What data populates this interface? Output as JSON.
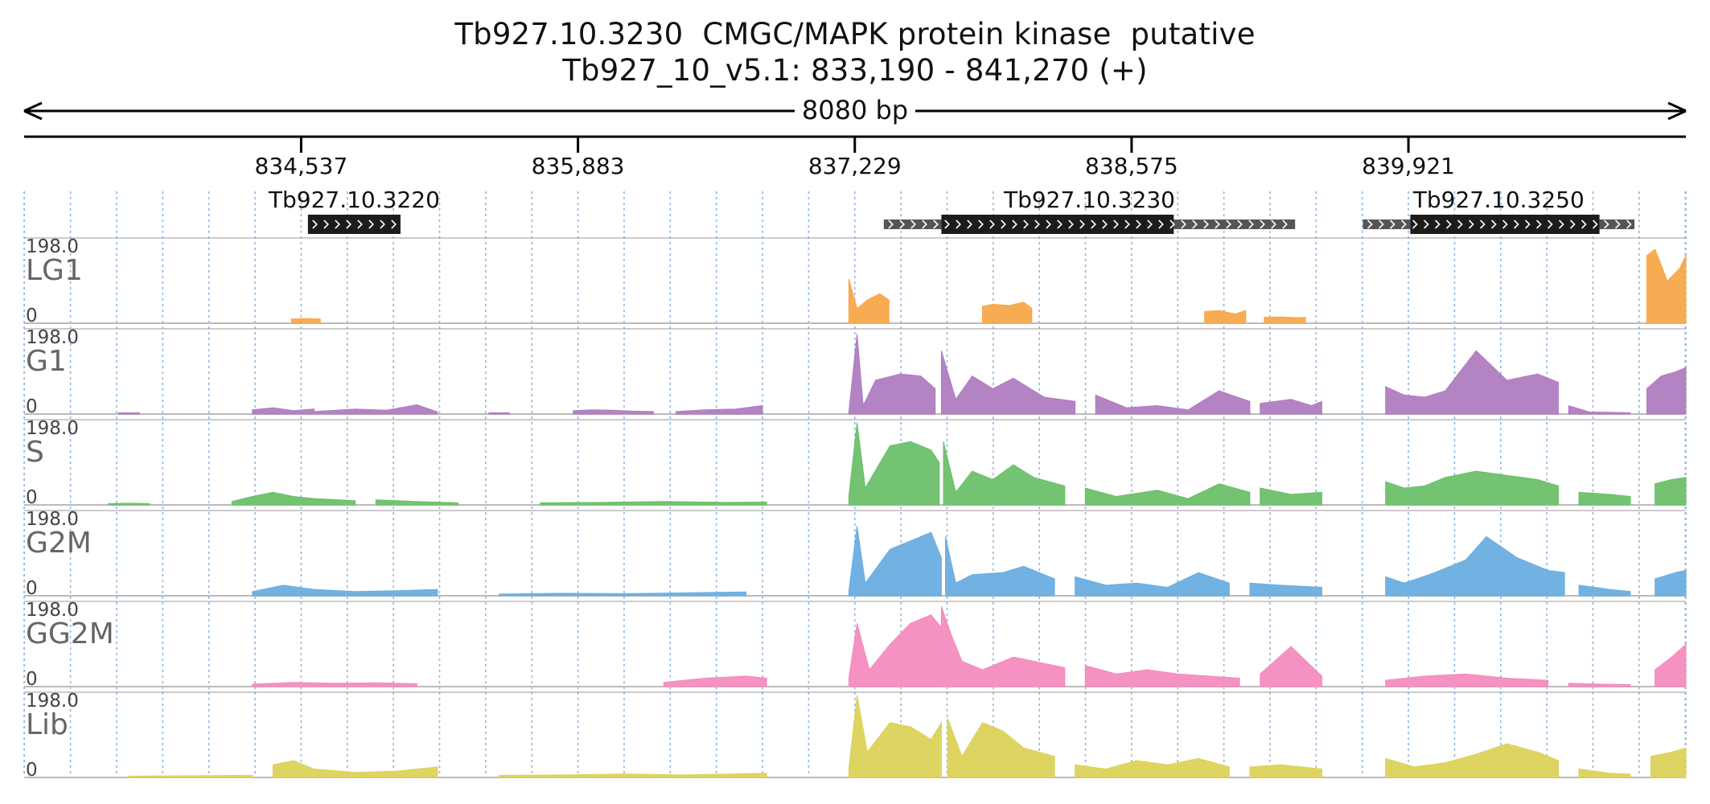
{
  "title": {
    "line1": "Tb927.10.3230  CMGC/MAPK protein kinase  putative",
    "line2": "Tb927_10_v5.1: 833,190 - 841,270 (+)"
  },
  "region": {
    "start": 833190,
    "end": 841270,
    "length_label": "8080 bp"
  },
  "ruler": {
    "ticks": [
      {
        "pos": 834537,
        "label": "834,537"
      },
      {
        "pos": 835883,
        "label": "835,883"
      },
      {
        "pos": 837229,
        "label": "837,229"
      },
      {
        "pos": 838575,
        "label": "838,575"
      },
      {
        "pos": 839921,
        "label": "839,921"
      }
    ]
  },
  "genes": [
    {
      "id": "Tb927.10.3220",
      "start": 834570,
      "end": 835020,
      "cds_start": 834570,
      "cds_end": 835020
    },
    {
      "id": "Tb927.10.3230",
      "start": 837370,
      "end": 839370,
      "cds_start": 837650,
      "cds_end": 838780
    },
    {
      "id": "Tb927.10.3250",
      "start": 839700,
      "end": 841020,
      "cds_start": 839930,
      "cds_end": 840850
    }
  ],
  "colors": {
    "LG1": "#f7a84a",
    "G1": "#b07cc0",
    "S": "#6cc06a",
    "G2M": "#6aaee0",
    "GG2M": "#f48cbf",
    "Lib": "#dcd25a",
    "gene_cds": "#1c1c1c",
    "gene_utr": "#555555",
    "gridline": "#8fb8e0"
  },
  "chart_data": {
    "type": "area",
    "x_unit": "genomic position (bp)",
    "ylim": [
      0,
      198.0
    ],
    "y_max_label": "198.0",
    "y_min_label": "0",
    "tracks": [
      {
        "name": "LG1",
        "segments": [
          {
            "x": [
              834490,
              834560,
              834630
            ],
            "y": [
              10,
              11,
              10
            ]
          },
          {
            "x": [
              837200,
              837240,
              837290,
              837350,
              837395
            ],
            "y": [
              105,
              35,
              55,
              70,
              55
            ]
          },
          {
            "x": [
              837850,
              837900,
              837980,
              838050,
              838090
            ],
            "y": [
              40,
              45,
              42,
              50,
              35
            ]
          },
          {
            "x": [
              838930,
              839000,
              839080,
              839130
            ],
            "y": [
              28,
              30,
              22,
              30
            ]
          },
          {
            "x": [
              839220,
              839300,
              839380,
              839420
            ],
            "y": [
              14,
              15,
              13,
              14
            ]
          },
          {
            "x": [
              841080,
              841120,
              841180,
              841240,
              841270
            ],
            "y": [
              160,
              175,
              100,
              130,
              160
            ]
          }
        ]
      },
      {
        "name": "G1",
        "segments": [
          {
            "x": [
              833650,
              833750
            ],
            "y": [
              3,
              3
            ]
          },
          {
            "x": [
              834300,
              834400,
              834500,
              834600
            ],
            "y": [
              10,
              15,
              8,
              12
            ]
          },
          {
            "x": [
              834600,
              834800,
              834950,
              835100,
              835200
            ],
            "y": [
              6,
              12,
              9,
              22,
              5
            ]
          },
          {
            "x": [
              835450,
              835550
            ],
            "y": [
              3,
              3
            ]
          },
          {
            "x": [
              835860,
              835950,
              836050,
              836150,
              836250
            ],
            "y": [
              8,
              10,
              9,
              7,
              6
            ]
          },
          {
            "x": [
              836360,
              836500,
              836650,
              836780
            ],
            "y": [
              6,
              10,
              12,
              20
            ]
          },
          {
            "x": [
              837200,
              837240,
              837270,
              837330,
              837450,
              837550,
              837620
            ],
            "y": [
              5,
              190,
              20,
              80,
              95,
              90,
              60
            ]
          },
          {
            "x": [
              837650,
              837720,
              837800,
              837900,
              838000,
              838150,
              838300
            ],
            "y": [
              150,
              35,
              90,
              60,
              85,
              40,
              30
            ]
          },
          {
            "x": [
              838400,
              838550,
              838700,
              838850,
              839000,
              839150
            ],
            "y": [
              45,
              15,
              20,
              10,
              55,
              30
            ]
          },
          {
            "x": [
              839200,
              839350,
              839450,
              839500
            ],
            "y": [
              25,
              35,
              20,
              30
            ]
          },
          {
            "x": [
              839810,
              839900,
              840000,
              840100,
              840250,
              840400,
              840550,
              840650
            ],
            "y": [
              65,
              45,
              40,
              55,
              150,
              80,
              95,
              75
            ]
          },
          {
            "x": [
              840700,
              840800,
              840900,
              841000
            ],
            "y": [
              20,
              5,
              4,
              3
            ]
          },
          {
            "x": [
              841080,
              841150,
              841220,
              841270
            ],
            "y": [
              60,
              90,
              100,
              110
            ]
          }
        ]
      },
      {
        "name": "S",
        "segments": [
          {
            "x": [
              833600,
              833700,
              833800
            ],
            "y": [
              3,
              4,
              3
            ]
          },
          {
            "x": [
              834200,
              834300,
              834400,
              834500,
              834600,
              834800
            ],
            "y": [
              8,
              20,
              30,
              20,
              15,
              10
            ]
          },
          {
            "x": [
              834900,
              835100,
              835300
            ],
            "y": [
              12,
              8,
              5
            ]
          },
          {
            "x": [
              835700,
              836000,
              836300,
              836600,
              836800
            ],
            "y": [
              5,
              6,
              8,
              6,
              7
            ]
          },
          {
            "x": [
              837200,
              837240,
              837280,
              837400,
              837500,
              837600,
              837640
            ],
            "y": [
              20,
              195,
              40,
              140,
              150,
              130,
              100
            ]
          },
          {
            "x": [
              837660,
              837720,
              837800,
              837900,
              838000,
              838100,
              838250
            ],
            "y": [
              150,
              30,
              80,
              60,
              95,
              65,
              45
            ]
          },
          {
            "x": [
              838350,
              838500,
              838700,
              838850,
              839000,
              839150
            ],
            "y": [
              40,
              20,
              35,
              15,
              50,
              30
            ]
          },
          {
            "x": [
              839200,
              839350,
              839500
            ],
            "y": [
              40,
              25,
              30
            ]
          },
          {
            "x": [
              839810,
              839900,
              840000,
              840100,
              840250,
              840400,
              840550,
              840650
            ],
            "y": [
              55,
              40,
              45,
              65,
              80,
              70,
              60,
              45
            ]
          },
          {
            "x": [
              840750,
              840900,
              841000
            ],
            "y": [
              30,
              25,
              20
            ]
          },
          {
            "x": [
              841120,
              841200,
              841270
            ],
            "y": [
              50,
              60,
              65
            ]
          }
        ]
      },
      {
        "name": "G2M",
        "segments": [
          {
            "x": [
              834300,
              834450,
              834600,
              834800,
              835000,
              835200
            ],
            "y": [
              10,
              25,
              15,
              10,
              12,
              15
            ]
          },
          {
            "x": [
              835500,
              835800,
              836100,
              836400,
              836700
            ],
            "y": [
              4,
              6,
              5,
              7,
              9
            ]
          },
          {
            "x": [
              837200,
              837240,
              837280,
              837400,
              837500,
              837600,
              837650
            ],
            "y": [
              10,
              165,
              30,
              110,
              130,
              150,
              90
            ]
          },
          {
            "x": [
              837670,
              837720,
              837800,
              837950,
              838050,
              838200
            ],
            "y": [
              140,
              30,
              50,
              55,
              70,
              40
            ]
          },
          {
            "x": [
              838300,
              838450,
              838600,
              838750,
              838900,
              839050
            ],
            "y": [
              45,
              25,
              30,
              20,
              55,
              30
            ]
          },
          {
            "x": [
              839150,
              839300,
              839500
            ],
            "y": [
              30,
              25,
              20
            ]
          },
          {
            "x": [
              839810,
              839900,
              840050,
              840200,
              840300,
              840450,
              840600,
              840680
            ],
            "y": [
              45,
              30,
              55,
              85,
              140,
              90,
              60,
              55
            ]
          },
          {
            "x": [
              840750,
              840900,
              841000
            ],
            "y": [
              25,
              15,
              10
            ]
          },
          {
            "x": [
              841120,
              841220,
              841270
            ],
            "y": [
              40,
              55,
              60
            ]
          }
        ]
      },
      {
        "name": "GG2M",
        "segments": [
          {
            "x": [
              834300,
              834500,
              834700,
              834900,
              835100
            ],
            "y": [
              6,
              10,
              8,
              9,
              7
            ]
          },
          {
            "x": [
              836300,
              836500,
              836700,
              836800
            ],
            "y": [
              10,
              20,
              25,
              20
            ]
          },
          {
            "x": [
              837200,
              837240,
              837300,
              837400,
              837500,
              837600,
              837650
            ],
            "y": [
              20,
              150,
              40,
              100,
              150,
              170,
              140
            ]
          },
          {
            "x": [
              837650,
              837700,
              837750,
              837850,
              838000,
              838150,
              838250
            ],
            "y": [
              190,
              120,
              60,
              40,
              70,
              55,
              45
            ]
          },
          {
            "x": [
              838350,
              838500,
              838650,
              838800,
              838950,
              839100
            ],
            "y": [
              50,
              30,
              40,
              30,
              25,
              20
            ]
          },
          {
            "x": [
              839200,
              839350,
              839500
            ],
            "y": [
              30,
              95,
              25
            ]
          },
          {
            "x": [
              839810,
              840000,
              840200,
              840400,
              840600
            ],
            "y": [
              15,
              25,
              30,
              20,
              15
            ]
          },
          {
            "x": [
              840700,
              840850,
              841000
            ],
            "y": [
              8,
              6,
              5
            ]
          },
          {
            "x": [
              841120,
              841200,
              841270
            ],
            "y": [
              40,
              70,
              100
            ]
          }
        ]
      },
      {
        "name": "Lib",
        "segments": [
          {
            "x": [
              833700,
              834000,
              834300
            ],
            "y": [
              3,
              4,
              5
            ]
          },
          {
            "x": [
              834400,
              834500,
              834600,
              834800,
              835000,
              835200
            ],
            "y": [
              30,
              40,
              20,
              12,
              15,
              25
            ]
          },
          {
            "x": [
              835500,
              835800,
              836100,
              836400,
              836800
            ],
            "y": [
              5,
              6,
              8,
              6,
              10
            ]
          },
          {
            "x": [
              837200,
              837240,
              837290,
              837400,
              837500,
              837600,
              837650
            ],
            "y": [
              20,
              195,
              60,
              130,
              120,
              90,
              130
            ]
          },
          {
            "x": [
              837680,
              837750,
              837850,
              837950,
              838050,
              838200
            ],
            "y": [
              140,
              50,
              130,
              110,
              70,
              50
            ]
          },
          {
            "x": [
              838300,
              838450,
              838600,
              838750,
              838900,
              839050
            ],
            "y": [
              30,
              20,
              40,
              30,
              45,
              25
            ]
          },
          {
            "x": [
              839150,
              839300,
              839500
            ],
            "y": [
              25,
              30,
              20
            ]
          },
          {
            "x": [
              839810,
              839950,
              840100,
              840250,
              840400,
              840550,
              840650
            ],
            "y": [
              45,
              25,
              35,
              55,
              80,
              60,
              40
            ]
          },
          {
            "x": [
              840750,
              840900,
              841000
            ],
            "y": [
              20,
              10,
              8
            ]
          },
          {
            "x": [
              841100,
              841200,
              841270
            ],
            "y": [
              50,
              60,
              70
            ]
          }
        ]
      }
    ]
  }
}
